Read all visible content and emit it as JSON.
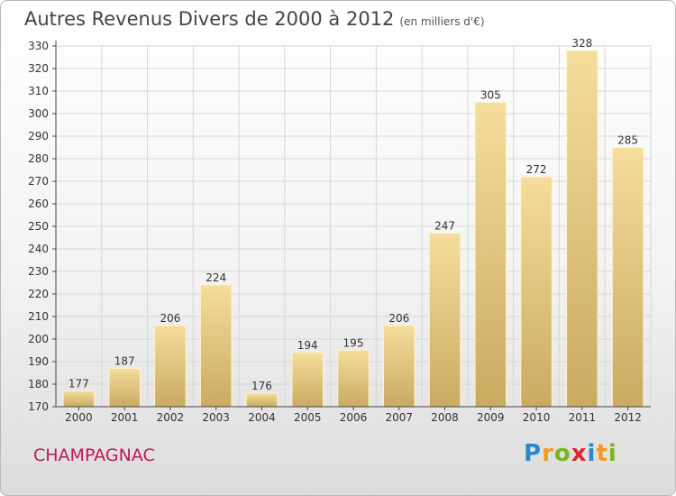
{
  "header": {
    "title": "Autres Revenus Divers de 2000 à 2012",
    "subtitle": "(en milliers d'€)"
  },
  "footer": {
    "place_name": "CHAMPAGNAC",
    "logo_text": "Proxiti"
  },
  "colors": {
    "bar_top": "#f5dd9c",
    "bar_bottom": "#c9aa61",
    "place_name": "#c0185a",
    "grid": "#d6d6d6"
  },
  "chart_data": {
    "type": "bar",
    "title": "Autres Revenus Divers de 2000 à 2012",
    "subtitle": "(en milliers d'€)",
    "categories": [
      "2000",
      "2001",
      "2002",
      "2003",
      "2004",
      "2005",
      "2006",
      "2007",
      "2008",
      "2009",
      "2010",
      "2011",
      "2012"
    ],
    "values": [
      177,
      187,
      206,
      224,
      176,
      194,
      195,
      206,
      247,
      305,
      272,
      328,
      285
    ],
    "data_labels": [
      "177",
      "187",
      "206",
      "224",
      "176",
      "194",
      "195",
      "206",
      "247",
      "305",
      "272",
      "328",
      "285"
    ],
    "ylim": [
      170,
      330
    ],
    "yticks": [
      170,
      180,
      190,
      200,
      210,
      220,
      230,
      240,
      250,
      260,
      270,
      280,
      290,
      300,
      310,
      320,
      330
    ],
    "grid": true
  }
}
